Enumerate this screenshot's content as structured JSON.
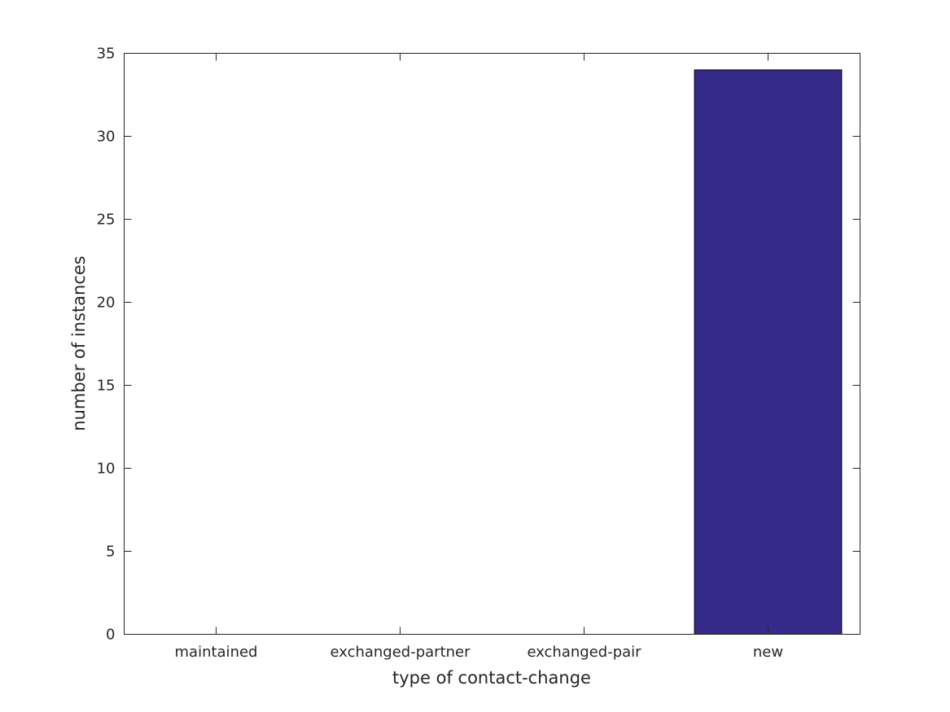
{
  "chart_data": {
    "type": "bar",
    "title": "",
    "xlabel": "type of contact-change",
    "ylabel": "number of instances",
    "categories": [
      "maintained",
      "exchanged-partner",
      "exchanged-pair",
      "new"
    ],
    "values": [
      0,
      0,
      0,
      34
    ],
    "ylim": [
      0,
      35
    ],
    "yticks": [
      0,
      5,
      10,
      15,
      20,
      25,
      30,
      35
    ],
    "grid": false,
    "bar_color": "#352a87"
  }
}
